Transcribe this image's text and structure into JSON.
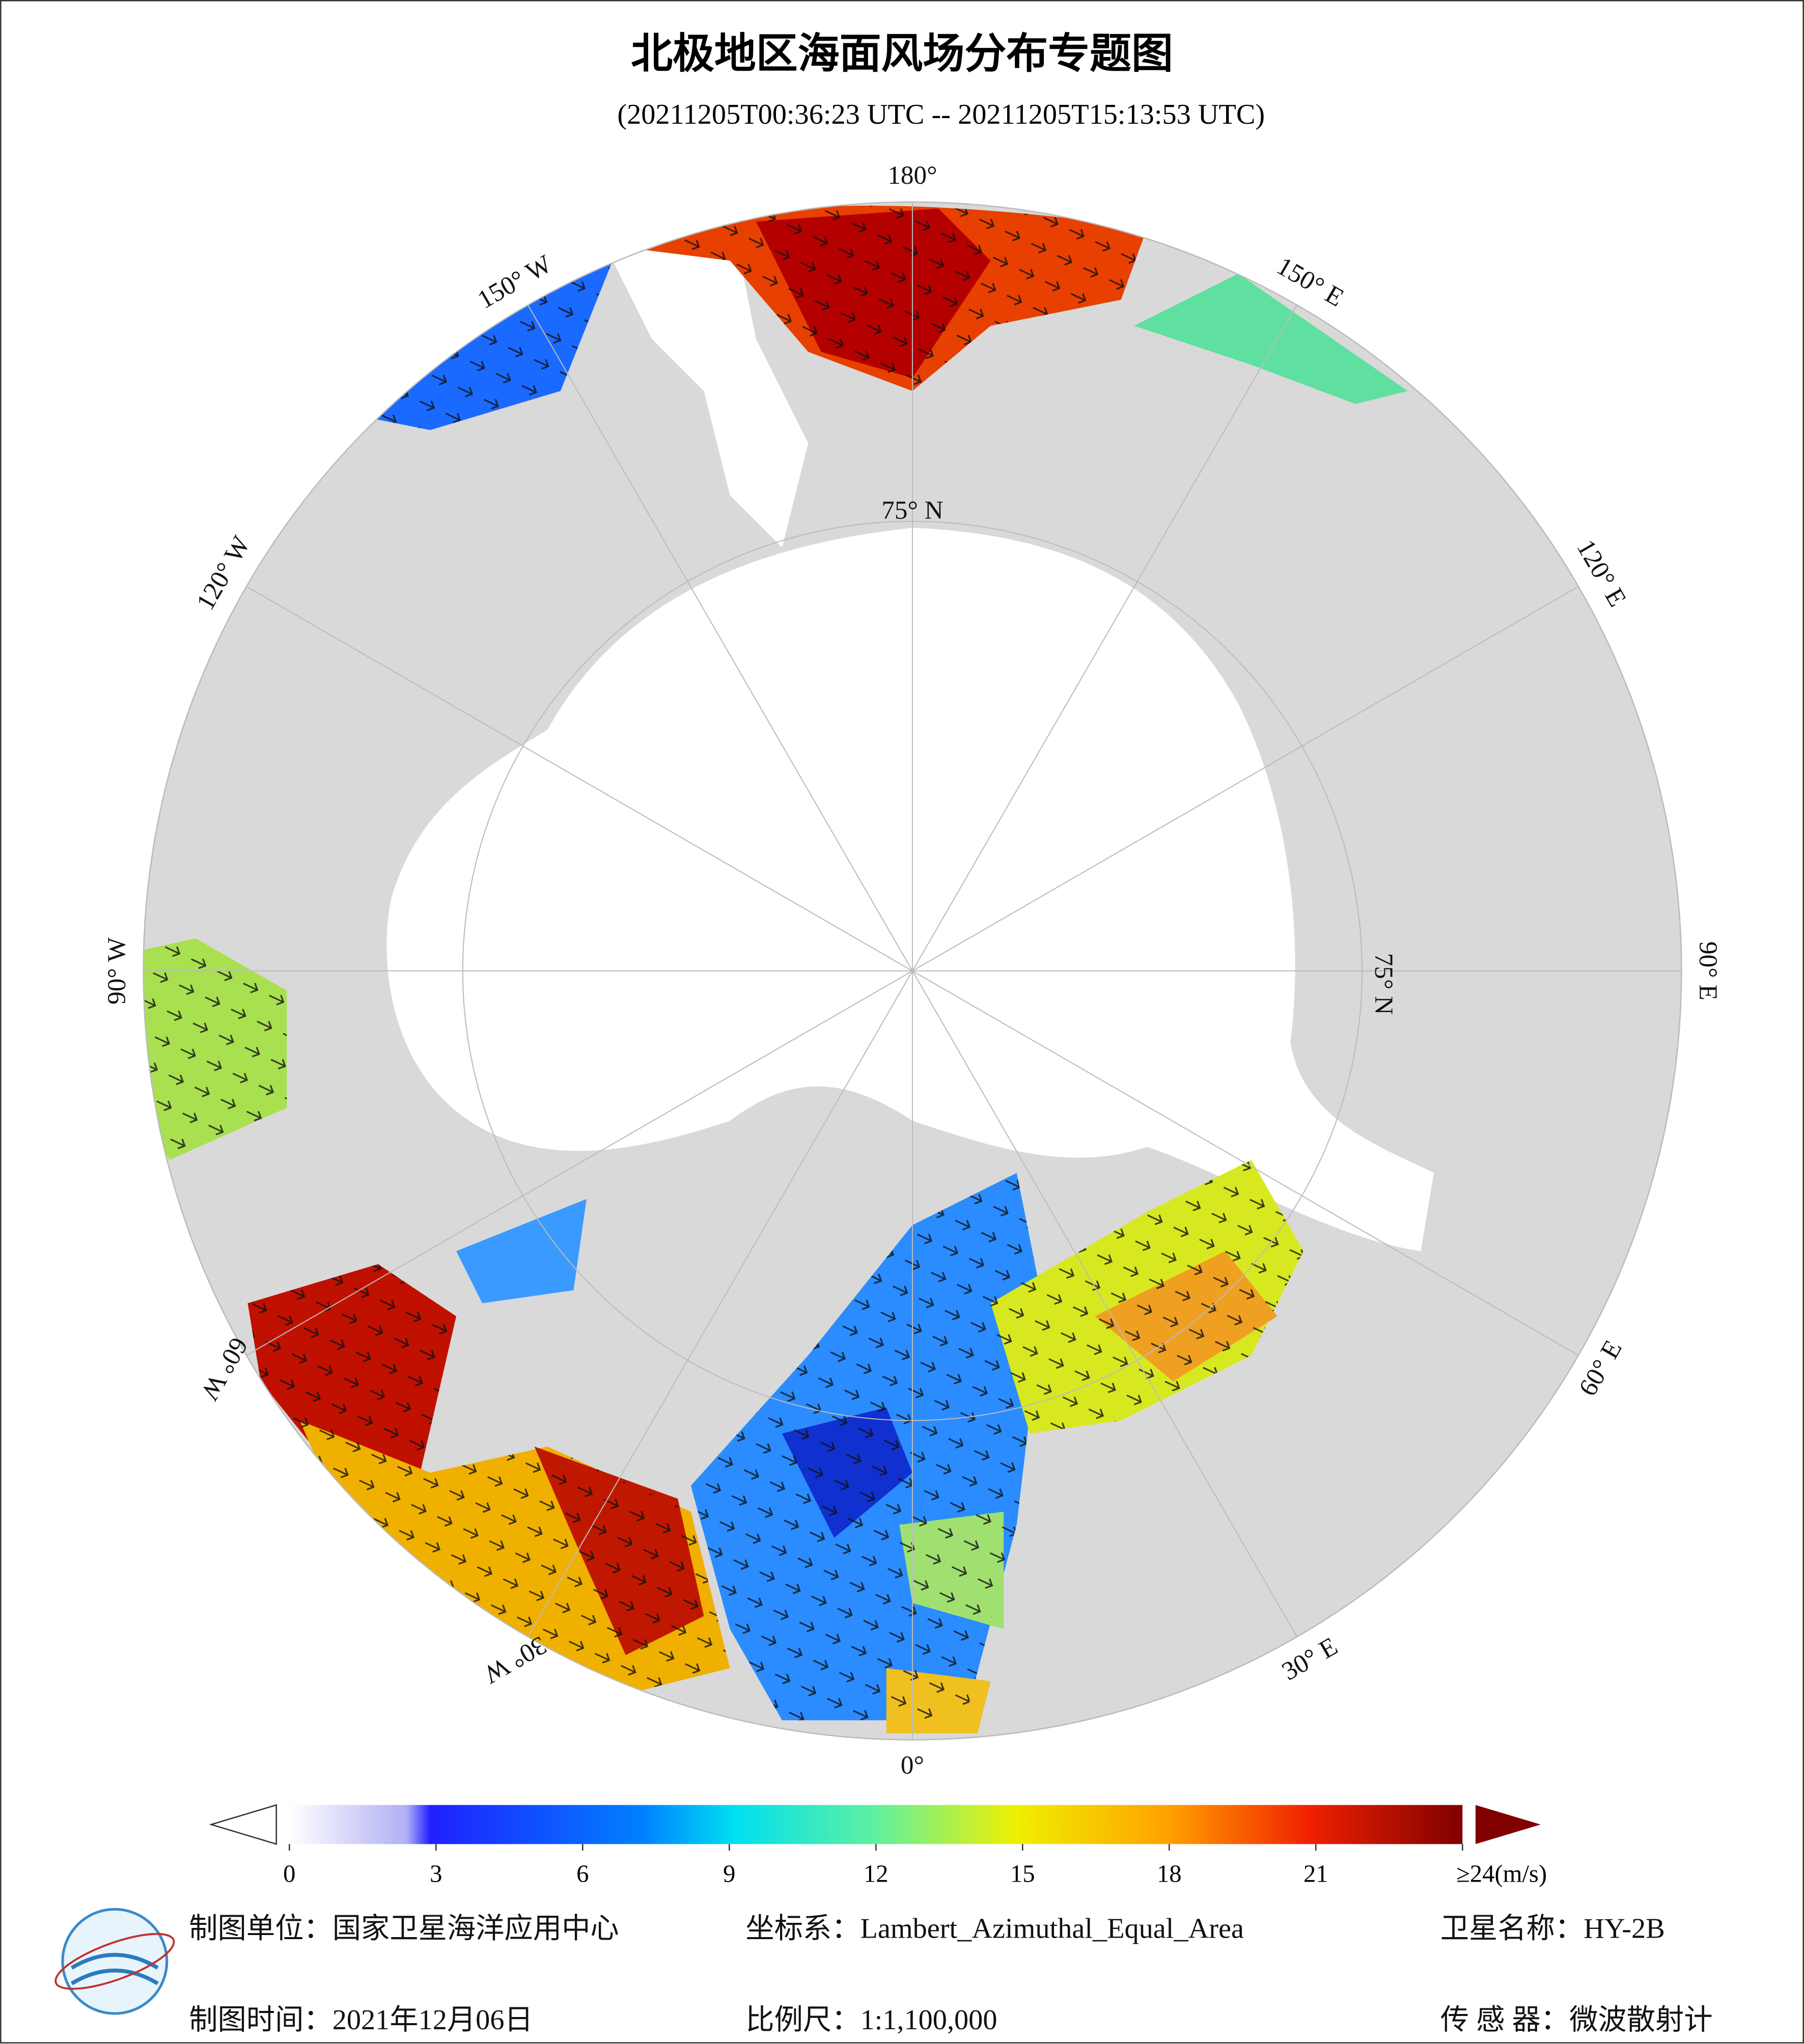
{
  "title": "北极地区海面风场分布专题图",
  "subtitle": "(20211205T00:36:23 UTC -- 20211205T15:13:53 UTC)",
  "graticule": {
    "lon_labels": [
      "180°",
      "150° E",
      "120° E",
      "90° E",
      "60° E",
      "30° E",
      "0°",
      "30° W",
      "60° W",
      "90° W",
      "120° W",
      "150° W"
    ],
    "lat_labels": [
      "75° N",
      "75° N"
    ]
  },
  "colorbar": {
    "lim": [
      0,
      24
    ],
    "ticks": [
      0,
      3,
      6,
      9,
      12,
      15,
      18,
      21,
      {
        "value": 24,
        "label": "≥24(m/s)"
      }
    ]
  },
  "footer": {
    "unit": "制图单位：国家卫星海洋应用中心",
    "projection": "坐标系：Lambert_Azimuthal_Equal_Area",
    "satellite": "卫星名称：HY-2B",
    "date": "制图时间：2021年12月06日",
    "scale": "比例尺：1:1,100,000",
    "sensor": "传 感 器：微波散射计"
  }
}
